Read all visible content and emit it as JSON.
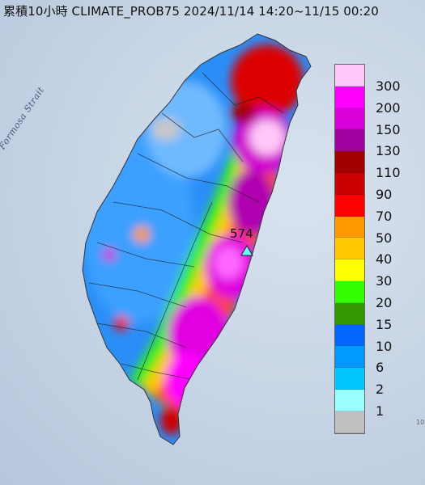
{
  "title": "累積10小時 CLIMATE_PROB75 2024/11/14 14:20~11/15 00:20",
  "sea_label": "Formosa Strait",
  "max_value_label": "574",
  "edge_mark": "10",
  "legend": {
    "levels": [
      "300",
      "200",
      "150",
      "130",
      "110",
      "90",
      "70",
      "50",
      "40",
      "30",
      "20",
      "15",
      "10",
      "6",
      "2",
      "1"
    ],
    "colors": [
      "#ffc8f8",
      "#ff00ff",
      "#d900d9",
      "#a000a0",
      "#a00000",
      "#cc0000",
      "#ff0000",
      "#ff9900",
      "#ffc800",
      "#ffff00",
      "#33ff00",
      "#339900",
      "#0066ff",
      "#0099ff",
      "#00c8ff",
      "#99ffff",
      "#c0c0c0"
    ]
  },
  "colors": {
    "sea": "#c5d3e4",
    "marker": "#66ffff"
  }
}
